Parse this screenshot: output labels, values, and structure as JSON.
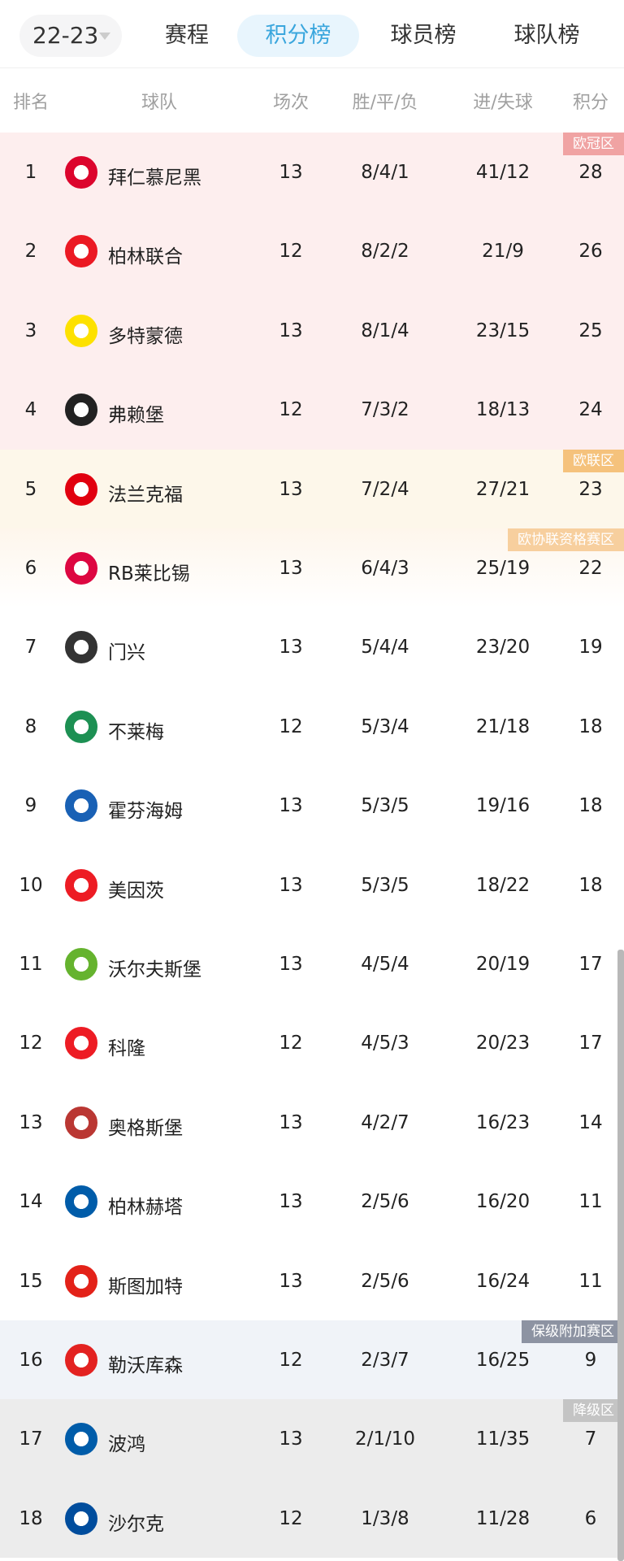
{
  "topbar": {
    "season": "22-23",
    "tabs": [
      {
        "label": "赛程"
      },
      {
        "label": "积分榜",
        "active": true
      },
      {
        "label": "球员榜"
      },
      {
        "label": "球队榜"
      }
    ]
  },
  "header": {
    "rank": "排名",
    "team": "球队",
    "played": "场次",
    "wdl": "胜/平/负",
    "goals": "进/失球",
    "points": "积分"
  },
  "zones": {
    "ucl": {
      "label": "欧冠区",
      "color": "#f0a3a3",
      "bg": "#fdeeee"
    },
    "uel": {
      "label": "欧联区",
      "color": "#f5c27c",
      "bg": "#fdf7ea"
    },
    "uecl": {
      "label": "欧协联资格赛区",
      "color": "#f7cf9e",
      "bg": "#fef8f0"
    },
    "playoff": {
      "label": "保级附加赛区",
      "color": "#8d93a2",
      "bg": "#f0f3f8"
    },
    "rel": {
      "label": "降级区",
      "color": "#c4c4c4",
      "bg": "#ececec"
    }
  },
  "rows": [
    {
      "rank": "1",
      "team": "拜仁慕尼黑",
      "played": "13",
      "wdl": "8/4/1",
      "goals": "41/12",
      "points": "28",
      "zone": "ucl",
      "logo": "bayern-logo",
      "color": "#dc052d"
    },
    {
      "rank": "2",
      "team": "柏林联合",
      "played": "12",
      "wdl": "8/2/2",
      "goals": "21/9",
      "points": "26",
      "zone": "ucl",
      "logo": "union-berlin-logo",
      "color": "#eb1923"
    },
    {
      "rank": "3",
      "team": "多特蒙德",
      "played": "13",
      "wdl": "8/1/4",
      "goals": "23/15",
      "points": "25",
      "zone": "ucl",
      "logo": "dortmund-logo",
      "color": "#fde100"
    },
    {
      "rank": "4",
      "team": "弗赖堡",
      "played": "12",
      "wdl": "7/3/2",
      "goals": "18/13",
      "points": "24",
      "zone": "ucl",
      "logo": "freiburg-logo",
      "color": "#222222"
    },
    {
      "rank": "5",
      "team": "法兰克福",
      "played": "13",
      "wdl": "7/2/4",
      "goals": "27/21",
      "points": "23",
      "zone": "uel",
      "logo": "frankfurt-logo",
      "color": "#e1000f"
    },
    {
      "rank": "6",
      "team": "RB莱比锡",
      "played": "13",
      "wdl": "6/4/3",
      "goals": "25/19",
      "points": "22",
      "zone": "uecl",
      "logo": "leipzig-logo",
      "color": "#dd0741"
    },
    {
      "rank": "7",
      "team": "门兴",
      "played": "13",
      "wdl": "5/4/4",
      "goals": "23/20",
      "points": "19",
      "logo": "gladbach-logo",
      "color": "#333333"
    },
    {
      "rank": "8",
      "team": "不莱梅",
      "played": "12",
      "wdl": "5/3/4",
      "goals": "21/18",
      "points": "18",
      "logo": "bremen-logo",
      "color": "#1d9053"
    },
    {
      "rank": "9",
      "team": "霍芬海姆",
      "played": "13",
      "wdl": "5/3/5",
      "goals": "19/16",
      "points": "18",
      "logo": "hoffenheim-logo",
      "color": "#1961b5"
    },
    {
      "rank": "10",
      "team": "美因茨",
      "played": "13",
      "wdl": "5/3/5",
      "goals": "18/22",
      "points": "18",
      "logo": "mainz-logo",
      "color": "#ed1c24"
    },
    {
      "rank": "11",
      "team": "沃尔夫斯堡",
      "played": "13",
      "wdl": "4/5/4",
      "goals": "20/19",
      "points": "17",
      "logo": "wolfsburg-logo",
      "color": "#65b32e"
    },
    {
      "rank": "12",
      "team": "科隆",
      "played": "12",
      "wdl": "4/5/3",
      "goals": "20/23",
      "points": "17",
      "logo": "koln-logo",
      "color": "#ed1c24"
    },
    {
      "rank": "13",
      "team": "奥格斯堡",
      "played": "13",
      "wdl": "4/2/7",
      "goals": "16/23",
      "points": "14",
      "logo": "augsburg-logo",
      "color": "#ba3733"
    },
    {
      "rank": "14",
      "team": "柏林赫塔",
      "played": "13",
      "wdl": "2/5/6",
      "goals": "16/20",
      "points": "11",
      "logo": "hertha-logo",
      "color": "#005ca9"
    },
    {
      "rank": "15",
      "team": "斯图加特",
      "played": "13",
      "wdl": "2/5/6",
      "goals": "16/24",
      "points": "11",
      "logo": "stuttgart-logo",
      "color": "#e32219"
    },
    {
      "rank": "16",
      "team": "勒沃库森",
      "played": "12",
      "wdl": "2/3/7",
      "goals": "16/25",
      "points": "9",
      "zone": "playoff",
      "logo": "leverkusen-logo",
      "color": "#e32221"
    },
    {
      "rank": "17",
      "team": "波鸿",
      "played": "13",
      "wdl": "2/1/10",
      "goals": "11/35",
      "points": "7",
      "zone": "rel",
      "logo": "bochum-logo",
      "color": "#005ca9"
    },
    {
      "rank": "18",
      "team": "沙尔克",
      "played": "12",
      "wdl": "1/3/8",
      "goals": "11/28",
      "points": "6",
      "zone": "rel",
      "logo": "schalke-logo",
      "color": "#004d9d"
    }
  ]
}
